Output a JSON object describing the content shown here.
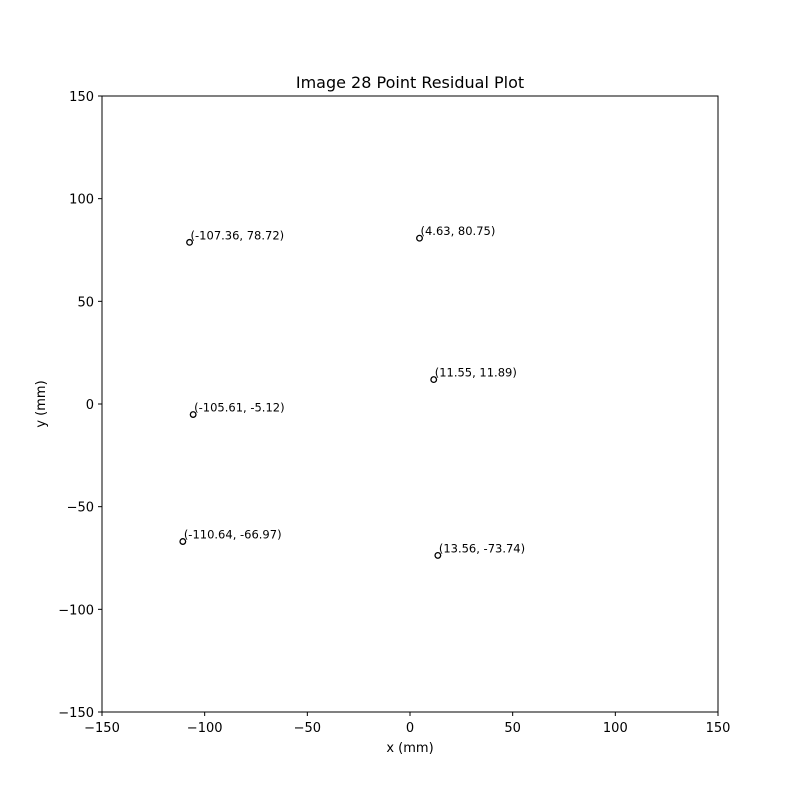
{
  "chart_data": {
    "type": "scatter",
    "title": "Image 28 Point Residual Plot",
    "xlabel": "x (mm)",
    "ylabel": "y (mm)",
    "xlim": [
      -150,
      150
    ],
    "ylim": [
      -150,
      150
    ],
    "xticks": [
      -150,
      -100,
      -50,
      0,
      50,
      100,
      150
    ],
    "yticks": [
      -150,
      -100,
      -50,
      0,
      50,
      100,
      150
    ],
    "xtick_labels": [
      "−150",
      "−100",
      "−50",
      "0",
      "50",
      "100",
      "150"
    ],
    "ytick_labels": [
      "−150",
      "−100",
      "−50",
      "0",
      "50",
      "100",
      "150"
    ],
    "grid": false,
    "marker": "open-circle",
    "marker_color": "#000000",
    "points": [
      {
        "x": -107.36,
        "y": 78.72,
        "label": "(-107.36, 78.72)"
      },
      {
        "x": 4.63,
        "y": 80.75,
        "label": "(4.63, 80.75)"
      },
      {
        "x": 11.55,
        "y": 11.89,
        "label": "(11.55, 11.89)"
      },
      {
        "x": -105.61,
        "y": -5.12,
        "label": "(-105.61, -5.12)"
      },
      {
        "x": -110.64,
        "y": -66.97,
        "label": "(-110.64, -66.97)"
      },
      {
        "x": 13.56,
        "y": -73.74,
        "label": "(13.56, -73.74)"
      }
    ]
  }
}
